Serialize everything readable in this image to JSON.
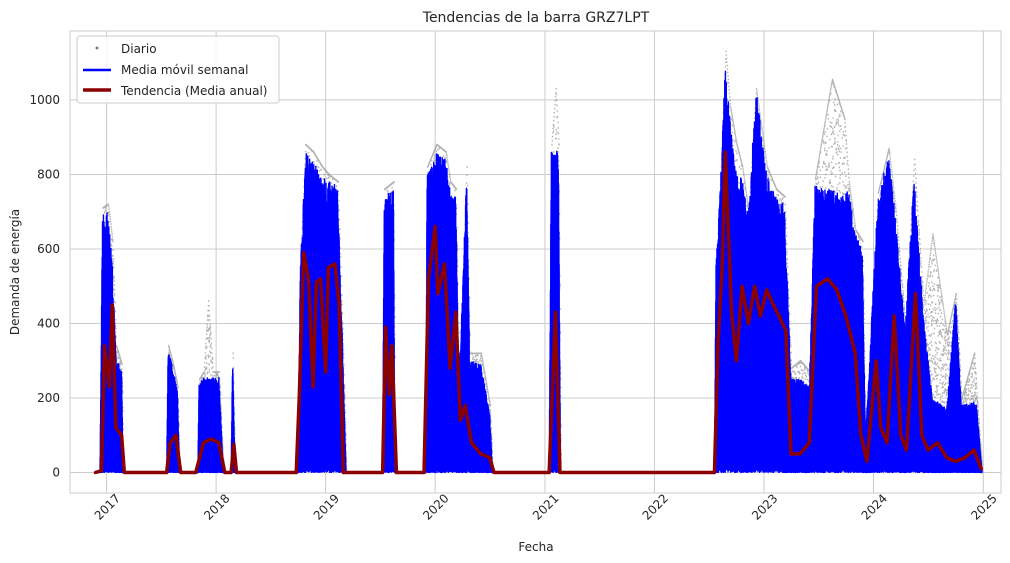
{
  "chart_data": {
    "type": "line",
    "title": "Tendencias de la barra GRZ7LPT",
    "xlabel": "Fecha",
    "ylabel": "Demanda de energía",
    "xlim": [
      "2016-09-01",
      "2025-03-01"
    ],
    "ylim": [
      -55,
      1185
    ],
    "x_ticks": [
      "2017",
      "2018",
      "2019",
      "2020",
      "2021",
      "2022",
      "2023",
      "2024",
      "2025"
    ],
    "y_ticks": [
      0,
      200,
      400,
      600,
      800,
      1000
    ],
    "grid": true,
    "legend_position": "top-left",
    "series": [
      {
        "name": "Diario",
        "style": "scatter",
        "color": "#808080",
        "envelope": [
          [
            "2016-11-25",
            0
          ],
          [
            "2016-12-10",
            5
          ],
          [
            "2016-12-18",
            710
          ],
          [
            "2017-01-05",
            720
          ],
          [
            "2017-01-20",
            620
          ],
          [
            "2017-02-01",
            340
          ],
          [
            "2017-02-20",
            290
          ],
          [
            "2017-02-25",
            0
          ],
          [
            "2017-07-20",
            0
          ],
          [
            "2017-07-25",
            340
          ],
          [
            "2017-08-10",
            290
          ],
          [
            "2017-08-25",
            230
          ],
          [
            "2017-09-01",
            0
          ],
          [
            "2017-11-01",
            0
          ],
          [
            "2017-11-05",
            250
          ],
          [
            "2017-11-20",
            270
          ],
          [
            "2017-12-05",
            460
          ],
          [
            "2017-12-20",
            270
          ],
          [
            "2018-01-10",
            270
          ],
          [
            "2018-01-25",
            0
          ],
          [
            "2018-02-20",
            0
          ],
          [
            "2018-02-25",
            320
          ],
          [
            "2018-03-05",
            0
          ],
          [
            "2018-10-01",
            0
          ],
          [
            "2018-10-08",
            560
          ],
          [
            "2018-10-25",
            880
          ],
          [
            "2018-11-20",
            860
          ],
          [
            "2018-12-20",
            820
          ],
          [
            "2019-01-10",
            800
          ],
          [
            "2019-02-10",
            780
          ],
          [
            "2019-02-25",
            400
          ],
          [
            "2019-03-05",
            180
          ],
          [
            "2019-03-10",
            0
          ],
          [
            "2019-07-10",
            0
          ],
          [
            "2019-07-15",
            760
          ],
          [
            "2019-08-15",
            780
          ],
          [
            "2019-08-20",
            0
          ],
          [
            "2019-12-01",
            0
          ],
          [
            "2019-12-05",
            820
          ],
          [
            "2020-01-05",
            880
          ],
          [
            "2020-02-05",
            860
          ],
          [
            "2020-02-20",
            780
          ],
          [
            "2020-03-10",
            760
          ],
          [
            "2020-03-20",
            250
          ],
          [
            "2020-04-15",
            820
          ],
          [
            "2020-04-25",
            320
          ],
          [
            "2020-06-01",
            320
          ],
          [
            "2020-07-01",
            180
          ],
          [
            "2020-07-10",
            0
          ],
          [
            "2021-01-15",
            0
          ],
          [
            "2021-01-22",
            880
          ],
          [
            "2021-02-05",
            1030
          ],
          [
            "2021-02-15",
            880
          ],
          [
            "2021-02-22",
            0
          ],
          [
            "2022-07-20",
            0
          ],
          [
            "2022-07-25",
            560
          ],
          [
            "2022-08-10",
            820
          ],
          [
            "2022-08-25",
            1130
          ],
          [
            "2022-09-10",
            980
          ],
          [
            "2022-10-01",
            880
          ],
          [
            "2022-10-20",
            820
          ],
          [
            "2022-11-10",
            700
          ],
          [
            "2022-12-05",
            1030
          ],
          [
            "2023-01-10",
            820
          ],
          [
            "2023-02-10",
            760
          ],
          [
            "2023-03-10",
            740
          ],
          [
            "2023-04-01",
            280
          ],
          [
            "2023-05-01",
            300
          ],
          [
            "2023-06-01",
            270
          ],
          [
            "2023-06-20",
            790
          ],
          [
            "2023-08-15",
            1055
          ],
          [
            "2023-09-25",
            950
          ],
          [
            "2023-10-10",
            780
          ],
          [
            "2023-11-01",
            650
          ],
          [
            "2023-11-25",
            620
          ],
          [
            "2023-12-05",
            100
          ],
          [
            "2024-01-15",
            750
          ],
          [
            "2024-02-20",
            870
          ],
          [
            "2024-03-15",
            700
          ],
          [
            "2024-04-15",
            400
          ],
          [
            "2024-05-15",
            840
          ],
          [
            "2024-06-15",
            450
          ],
          [
            "2024-07-15",
            640
          ],
          [
            "2024-09-01",
            370
          ],
          [
            "2024-10-01",
            480
          ],
          [
            "2024-10-20",
            200
          ],
          [
            "2024-12-01",
            320
          ],
          [
            "2024-12-10",
            200
          ],
          [
            "2024-12-28",
            0
          ]
        ]
      },
      {
        "name": "Media móvil semanal",
        "style": "line",
        "color": "#0000ff",
        "envelope": [
          [
            "2016-11-25",
            0
          ],
          [
            "2016-12-10",
            3
          ],
          [
            "2016-12-18",
            690
          ],
          [
            "2017-01-05",
            700
          ],
          [
            "2017-01-20",
            560
          ],
          [
            "2017-02-01",
            320
          ],
          [
            "2017-02-20",
            270
          ],
          [
            "2017-02-25",
            0
          ],
          [
            "2017-07-20",
            0
          ],
          [
            "2017-07-25",
            330
          ],
          [
            "2017-08-10",
            280
          ],
          [
            "2017-08-25",
            220
          ],
          [
            "2017-09-01",
            0
          ],
          [
            "2017-11-01",
            0
          ],
          [
            "2017-11-05",
            235
          ],
          [
            "2017-11-20",
            255
          ],
          [
            "2017-12-20",
            255
          ],
          [
            "2018-01-10",
            260
          ],
          [
            "2018-01-25",
            0
          ],
          [
            "2018-02-20",
            0
          ],
          [
            "2018-02-25",
            320
          ],
          [
            "2018-03-05",
            0
          ],
          [
            "2018-10-01",
            0
          ],
          [
            "2018-10-08",
            540
          ],
          [
            "2018-10-25",
            860
          ],
          [
            "2018-11-20",
            840
          ],
          [
            "2018-12-20",
            790
          ],
          [
            "2019-01-10",
            800
          ],
          [
            "2019-02-10",
            760
          ],
          [
            "2019-02-25",
            380
          ],
          [
            "2019-03-05",
            150
          ],
          [
            "2019-03-10",
            0
          ],
          [
            "2019-07-10",
            0
          ],
          [
            "2019-07-15",
            740
          ],
          [
            "2019-08-15",
            760
          ],
          [
            "2019-08-20",
            0
          ],
          [
            "2019-12-01",
            0
          ],
          [
            "2019-12-05",
            800
          ],
          [
            "2020-01-05",
            860
          ],
          [
            "2020-02-05",
            840
          ],
          [
            "2020-02-20",
            760
          ],
          [
            "2020-03-10",
            740
          ],
          [
            "2020-03-20",
            230
          ],
          [
            "2020-04-15",
            800
          ],
          [
            "2020-04-25",
            300
          ],
          [
            "2020-06-01",
            290
          ],
          [
            "2020-07-01",
            160
          ],
          [
            "2020-07-10",
            0
          ],
          [
            "2021-01-15",
            0
          ],
          [
            "2021-01-22",
            860
          ],
          [
            "2021-02-05",
            875
          ],
          [
            "2021-02-15",
            860
          ],
          [
            "2021-02-22",
            0
          ],
          [
            "2022-07-20",
            0
          ],
          [
            "2022-07-25",
            555
          ],
          [
            "2022-08-10",
            800
          ],
          [
            "2022-08-25",
            1090
          ],
          [
            "2022-09-10",
            960
          ],
          [
            "2022-10-01",
            800
          ],
          [
            "2022-10-20",
            790
          ],
          [
            "2022-11-10",
            700
          ],
          [
            "2022-12-05",
            1035
          ],
          [
            "2023-01-10",
            800
          ],
          [
            "2023-02-10",
            740
          ],
          [
            "2023-03-10",
            720
          ],
          [
            "2023-04-01",
            250
          ],
          [
            "2023-05-01",
            250
          ],
          [
            "2023-06-01",
            230
          ],
          [
            "2023-06-20",
            770
          ],
          [
            "2023-08-15",
            760
          ],
          [
            "2023-09-25",
            740
          ],
          [
            "2023-10-10",
            760
          ],
          [
            "2023-11-01",
            640
          ],
          [
            "2023-11-25",
            600
          ],
          [
            "2023-12-05",
            90
          ],
          [
            "2024-01-15",
            730
          ],
          [
            "2024-02-20",
            860
          ],
          [
            "2024-03-15",
            680
          ],
          [
            "2024-04-15",
            380
          ],
          [
            "2024-05-15",
            800
          ],
          [
            "2024-06-15",
            420
          ],
          [
            "2024-07-15",
            200
          ],
          [
            "2024-09-01",
            170
          ],
          [
            "2024-10-01",
            470
          ],
          [
            "2024-10-20",
            180
          ],
          [
            "2024-12-01",
            190
          ],
          [
            "2024-12-10",
            180
          ],
          [
            "2024-12-28",
            0
          ]
        ]
      },
      {
        "name": "Tendencia (Media anual)",
        "style": "line",
        "color": "#8b0000",
        "points": [
          [
            "2016-11-25",
            0
          ],
          [
            "2016-12-15",
            5
          ],
          [
            "2016-12-25",
            340
          ],
          [
            "2017-01-10",
            230
          ],
          [
            "2017-01-20",
            450
          ],
          [
            "2017-02-01",
            120
          ],
          [
            "2017-02-20",
            100
          ],
          [
            "2017-03-01",
            0
          ],
          [
            "2017-07-20",
            0
          ],
          [
            "2017-08-01",
            80
          ],
          [
            "2017-08-20",
            100
          ],
          [
            "2017-09-05",
            0
          ],
          [
            "2017-10-25",
            0
          ],
          [
            "2017-11-20",
            80
          ],
          [
            "2017-12-15",
            90
          ],
          [
            "2018-01-10",
            80
          ],
          [
            "2018-01-30",
            0
          ],
          [
            "2018-02-20",
            0
          ],
          [
            "2018-03-01",
            75
          ],
          [
            "2018-03-10",
            0
          ],
          [
            "2018-09-25",
            0
          ],
          [
            "2018-10-05",
            200
          ],
          [
            "2018-10-20",
            590
          ],
          [
            "2018-11-05",
            520
          ],
          [
            "2018-11-20",
            230
          ],
          [
            "2018-12-01",
            510
          ],
          [
            "2018-12-15",
            520
          ],
          [
            "2019-01-01",
            270
          ],
          [
            "2019-01-10",
            550
          ],
          [
            "2019-02-01",
            560
          ],
          [
            "2019-02-15",
            450
          ],
          [
            "2019-03-01",
            0
          ],
          [
            "2019-07-10",
            0
          ],
          [
            "2019-07-20",
            390
          ],
          [
            "2019-08-01",
            210
          ],
          [
            "2019-08-10",
            340
          ],
          [
            "2019-08-25",
            0
          ],
          [
            "2019-11-25",
            0
          ],
          [
            "2019-12-10",
            520
          ],
          [
            "2020-01-01",
            660
          ],
          [
            "2020-01-10",
            480
          ],
          [
            "2020-02-01",
            560
          ],
          [
            "2020-02-20",
            280
          ],
          [
            "2020-03-10",
            430
          ],
          [
            "2020-03-25",
            140
          ],
          [
            "2020-04-10",
            180
          ],
          [
            "2020-05-01",
            80
          ],
          [
            "2020-06-01",
            50
          ],
          [
            "2020-07-01",
            40
          ],
          [
            "2020-07-15",
            0
          ],
          [
            "2021-01-15",
            0
          ],
          [
            "2021-01-25",
            200
          ],
          [
            "2021-02-05",
            430
          ],
          [
            "2021-02-20",
            0
          ],
          [
            "2022-07-20",
            0
          ],
          [
            "2022-08-01",
            350
          ],
          [
            "2022-08-15",
            560
          ],
          [
            "2022-08-25",
            860
          ],
          [
            "2022-09-15",
            430
          ],
          [
            "2022-10-01",
            300
          ],
          [
            "2022-10-20",
            500
          ],
          [
            "2022-11-10",
            400
          ],
          [
            "2022-12-01",
            500
          ],
          [
            "2022-12-20",
            420
          ],
          [
            "2023-01-10",
            490
          ],
          [
            "2023-02-01",
            450
          ],
          [
            "2023-02-20",
            420
          ],
          [
            "2023-03-15",
            380
          ],
          [
            "2023-04-01",
            50
          ],
          [
            "2023-05-01",
            50
          ],
          [
            "2023-06-01",
            80
          ],
          [
            "2023-06-25",
            500
          ],
          [
            "2023-08-01",
            520
          ],
          [
            "2023-09-01",
            490
          ],
          [
            "2023-10-01",
            420
          ],
          [
            "2023-11-01",
            320
          ],
          [
            "2023-11-20",
            100
          ],
          [
            "2023-12-10",
            30
          ],
          [
            "2024-01-10",
            300
          ],
          [
            "2024-01-25",
            120
          ],
          [
            "2024-02-15",
            80
          ],
          [
            "2024-03-10",
            420
          ],
          [
            "2024-04-01",
            100
          ],
          [
            "2024-04-20",
            60
          ],
          [
            "2024-05-20",
            480
          ],
          [
            "2024-06-10",
            100
          ],
          [
            "2024-07-01",
            60
          ],
          [
            "2024-08-01",
            80
          ],
          [
            "2024-09-01",
            40
          ],
          [
            "2024-10-01",
            30
          ],
          [
            "2024-11-01",
            40
          ],
          [
            "2024-12-01",
            60
          ],
          [
            "2024-12-25",
            10
          ]
        ]
      }
    ]
  }
}
